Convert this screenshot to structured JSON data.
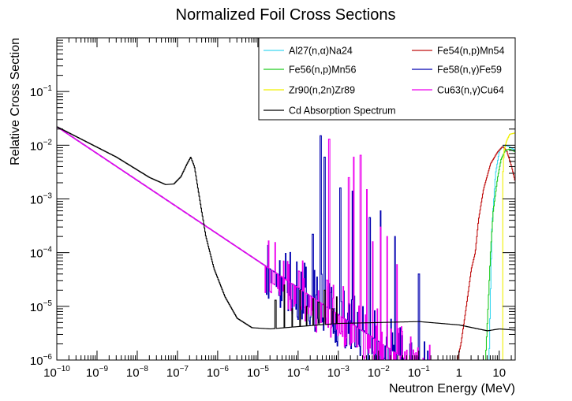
{
  "chart_data": {
    "type": "line",
    "title": "Normalized Foil Cross Sections",
    "xlabel": "Neutron Energy (MeV)",
    "ylabel": "Relative Cross Section",
    "xscale": "log",
    "yscale": "log",
    "xlim": [
      1e-10,
      25
    ],
    "ylim": [
      1e-06,
      1.0
    ],
    "grid": false,
    "legend_position": "top-right",
    "x_ticks": [
      {
        "value": 1e-10,
        "base": "10",
        "exp": "−10"
      },
      {
        "value": 1e-09,
        "base": "10",
        "exp": "−9"
      },
      {
        "value": 1e-08,
        "base": "10",
        "exp": "−8"
      },
      {
        "value": 1e-07,
        "base": "10",
        "exp": "−7"
      },
      {
        "value": 1e-06,
        "base": "10",
        "exp": "−6"
      },
      {
        "value": 1e-05,
        "base": "10",
        "exp": "−5"
      },
      {
        "value": 0.0001,
        "base": "10",
        "exp": "−4"
      },
      {
        "value": 0.001,
        "base": "10",
        "exp": "−3"
      },
      {
        "value": 0.01,
        "base": "10",
        "exp": "−2"
      },
      {
        "value": 0.1,
        "base": "10",
        "exp": "−1"
      },
      {
        "value": 1,
        "base": "1",
        "exp": ""
      },
      {
        "value": 10,
        "base": "10",
        "exp": ""
      }
    ],
    "y_ticks": [
      {
        "value": 1e-06,
        "base": "10",
        "exp": "−6"
      },
      {
        "value": 1e-05,
        "base": "10",
        "exp": "−5"
      },
      {
        "value": 0.0001,
        "base": "10",
        "exp": "−4"
      },
      {
        "value": 0.001,
        "base": "10",
        "exp": "−3"
      },
      {
        "value": 0.01,
        "base": "10",
        "exp": "−2"
      },
      {
        "value": 0.1,
        "base": "10",
        "exp": "−1"
      }
    ],
    "series": [
      {
        "name": "Al27(n,α)Na24",
        "color": "#3fd7f0",
        "style": "threshold",
        "points": [
          [
            1e-10,
            1e-06
          ],
          [
            5.5,
            1e-06
          ],
          [
            6.5,
            0.0003
          ],
          [
            8,
            0.003
          ],
          [
            10,
            0.008
          ],
          [
            13,
            0.01
          ],
          [
            17,
            0.0095
          ],
          [
            25,
            0.008
          ]
        ]
      },
      {
        "name": "Fe54(n,p)Mn54",
        "color": "#c01010",
        "style": "threshold",
        "points": [
          [
            1e-10,
            1e-06
          ],
          [
            0.9,
            1e-06
          ],
          [
            1.1,
            2e-06
          ],
          [
            1.5,
            1e-05
          ],
          [
            2,
            5e-05
          ],
          [
            2.5,
            0.0001
          ],
          [
            3,
            0.0004
          ],
          [
            4,
            0.0015
          ],
          [
            6,
            0.0045
          ],
          [
            9,
            0.0075
          ],
          [
            12,
            0.0095
          ],
          [
            15,
            0.008
          ],
          [
            20,
            0.004
          ],
          [
            25,
            0.002
          ]
        ]
      },
      {
        "name": "Fe56(n,p)Mn56",
        "color": "#22cc22",
        "style": "threshold",
        "points": [
          [
            1e-10,
            1e-06
          ],
          [
            4.5,
            1e-06
          ],
          [
            5,
            5e-06
          ],
          [
            6,
            0.0001
          ],
          [
            7,
            0.0006
          ],
          [
            9,
            0.0025
          ],
          [
            11,
            0.0055
          ],
          [
            14,
            0.008
          ],
          [
            18,
            0.0085
          ],
          [
            25,
            0.0075
          ]
        ]
      },
      {
        "name": "Fe58(n,γ)Fe59",
        "color": "#0000b0",
        "style": "resonance",
        "base": 0.022,
        "highx": 2,
        "tail_end": 1.5e-06,
        "resonances": [
          [
            0.00023,
            0.00022
          ],
          [
            0.00036,
            0.015
          ],
          [
            0.00045,
            0.006
          ],
          [
            0.0011,
            0.0016
          ],
          [
            0.0022,
            0.0014
          ],
          [
            0.006,
            0.00045
          ],
          [
            0.011,
            0.0006
          ],
          [
            0.025,
            0.0002
          ],
          [
            0.1,
            4e-05
          ]
        ]
      },
      {
        "name": "Zr90(n,2n)Zr89",
        "color": "#f0f000",
        "style": "threshold",
        "points": [
          [
            1e-10,
            1e-06
          ],
          [
            12,
            1e-06
          ],
          [
            12.2,
            0.003
          ],
          [
            13,
            0.008
          ],
          [
            15,
            0.012
          ],
          [
            18,
            0.016
          ],
          [
            25,
            0.017
          ]
        ]
      },
      {
        "name": "Cu63(n,γ)Cu64",
        "color": "#ee00ee",
        "style": "resonance",
        "base": 0.022,
        "highx": 1,
        "tail_end": 1.5e-06,
        "resonances": [
          [
            0.00058,
            0.013
          ],
          [
            0.0018,
            0.0025
          ],
          [
            0.0024,
            0.006
          ],
          [
            0.0035,
            0.0065
          ],
          [
            0.005,
            0.0015
          ],
          [
            0.007,
            0.00016
          ],
          [
            0.011,
            0.0003
          ],
          [
            0.016,
            0.0002
          ],
          [
            0.028,
            6e-05
          ]
        ]
      },
      {
        "name": "Cd Absorption Spectrum",
        "color": "#000000",
        "style": "cadmium",
        "points": [
          [
            1e-10,
            0.022
          ],
          [
            3e-09,
            0.006
          ],
          [
            2e-08,
            0.0025
          ],
          [
            5e-08,
            0.00185
          ],
          [
            8e-08,
            0.0019
          ],
          [
            1.2e-07,
            0.0026
          ],
          [
            1.7e-07,
            0.0045
          ],
          [
            2.1e-07,
            0.006
          ],
          [
            2.6e-07,
            0.004
          ],
          [
            3.5e-07,
            0.001
          ],
          [
            5e-07,
            0.0002
          ],
          [
            8e-07,
            5e-05
          ],
          [
            1.5e-06,
            1.5e-05
          ],
          [
            3e-06,
            6e-06
          ],
          [
            7e-06,
            4e-06
          ],
          [
            2e-05,
            3.8e-06
          ],
          [
            0.0001,
            4.2e-06
          ],
          [
            0.001,
            4.8e-06
          ],
          [
            0.01,
            5e-06
          ],
          [
            0.1,
            5.2e-06
          ],
          [
            1,
            4.5e-06
          ],
          [
            5,
            3.5e-06
          ],
          [
            10,
            3.8e-06
          ],
          [
            25,
            3.6e-06
          ]
        ],
        "resonances": [
          [
            2.7e-05,
            1.3e-05
          ],
          [
            4.5e-05,
            2.5e-05
          ],
          [
            7e-05,
            9e-06
          ],
          [
            0.00011,
            2e-05
          ],
          [
            0.00016,
            1e-05
          ],
          [
            0.00023,
            1.4e-05
          ],
          [
            0.00032,
            1.2e-05
          ],
          [
            0.00045,
            2e-05
          ],
          [
            0.0007,
            9e-06
          ],
          [
            0.0009,
            1.5e-05
          ]
        ]
      }
    ]
  }
}
